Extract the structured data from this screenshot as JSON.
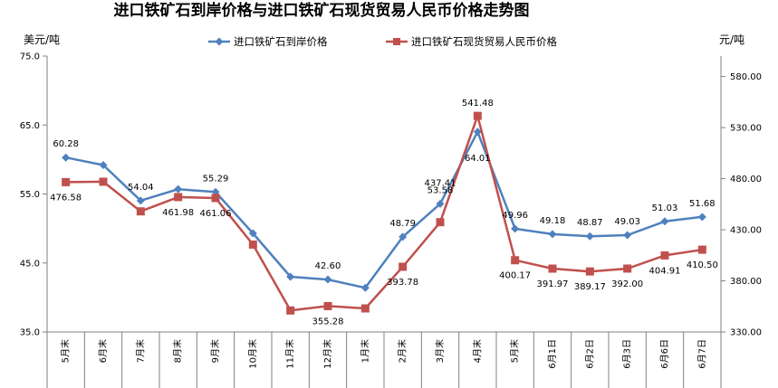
{
  "chart_data": {
    "type": "line",
    "title": "进口铁矿石到岸价格与进口铁矿石现货贸易人民币价格走势图",
    "ylabel_left": "美元/吨",
    "ylabel_right": "元/吨",
    "categories": [
      "5月末",
      "6月末",
      "7月末",
      "8月末",
      "9月末",
      "10月末",
      "11月末",
      "12月末",
      "1月末",
      "2月末",
      "3月末",
      "4月末",
      "5月末",
      "6月1日",
      "6月2日",
      "6月3日",
      "6月6日",
      "6月7日"
    ],
    "y_left": {
      "min": 35,
      "max": 75,
      "ticks": [
        "35.0",
        "45.0",
        "55.0",
        "65.0",
        "75.0"
      ]
    },
    "y_right": {
      "min": 330,
      "max": 600,
      "ticks": [
        "330.00",
        "380.00",
        "430.00",
        "480.00",
        "530.00",
        "580.00"
      ]
    },
    "grid": false,
    "legend_position": "top",
    "series": [
      {
        "name": "进口铁矿石到岸价格",
        "axis": "left",
        "color": "#4F81BD",
        "marker": "diamond",
        "values": [
          60.28,
          59.2,
          54.04,
          55.7,
          55.29,
          49.3,
          43.0,
          42.6,
          41.4,
          48.79,
          53.58,
          64.01,
          49.96,
          49.18,
          48.87,
          49.03,
          51.03,
          51.68
        ],
        "labels": [
          "60.28",
          "",
          "54.04",
          "",
          "55.29",
          "",
          "",
          "42.60",
          "",
          "48.79",
          "53.58",
          "64.01",
          "49.96",
          "49.18",
          "48.87",
          "49.03",
          "51.03",
          "51.68"
        ]
      },
      {
        "name": "进口铁矿石现货贸易人民币价格",
        "axis": "right",
        "color": "#C0504D",
        "marker": "square",
        "values": [
          476.58,
          477.0,
          448.0,
          461.98,
          461.06,
          415.5,
          351.0,
          355.28,
          353.0,
          393.78,
          437.41,
          541.48,
          400.17,
          391.97,
          389.17,
          392.0,
          404.91,
          410.5
        ],
        "labels": [
          "476.58",
          "",
          "",
          "461.98",
          "461.06",
          "",
          "",
          "355.28",
          "",
          "393.78",
          "437.41",
          "541.48",
          "400.17",
          "391.97",
          "389.17",
          "392.00",
          "404.91",
          "410.50"
        ]
      }
    ]
  }
}
